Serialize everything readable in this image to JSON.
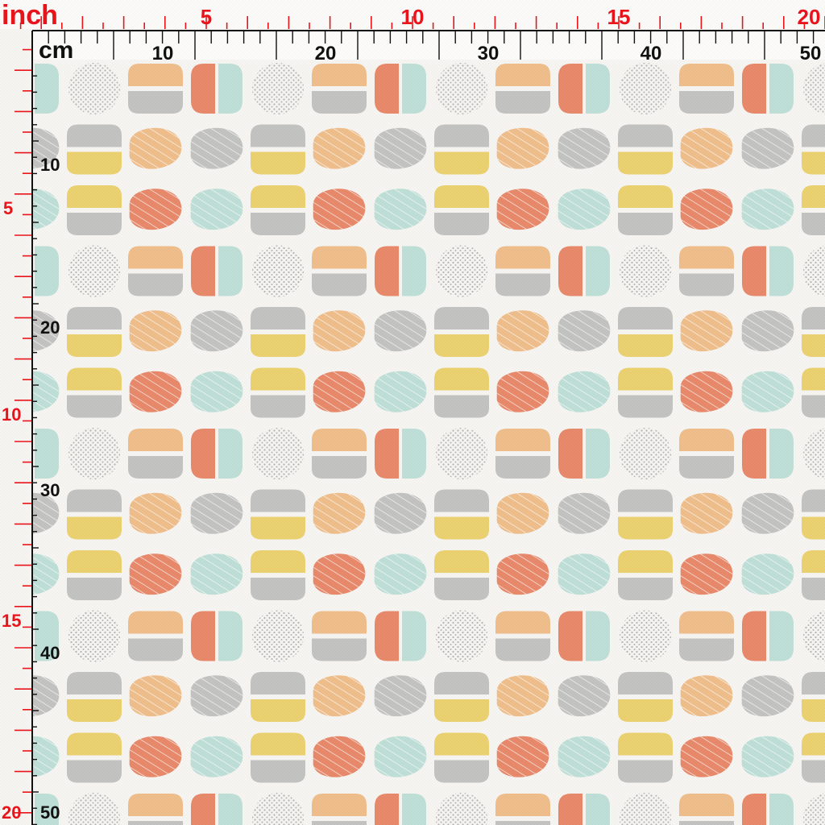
{
  "ruler": {
    "inch_unit": "inch",
    "cm_unit": "cm",
    "inch_top_labels": [
      "5",
      "10",
      "15",
      "20"
    ],
    "cm_top_labels": [
      "10",
      "20",
      "30",
      "40",
      "50"
    ],
    "inch_left_labels": [
      "5",
      "10",
      "15",
      "20"
    ],
    "cm_left_labels": [
      "10",
      "20",
      "30",
      "40",
      "50"
    ],
    "inch_color": "#e8141c",
    "cm_color": "#111111"
  },
  "fabric": {
    "background": "#f7f6f3",
    "colors": {
      "peach": "#f0bf8c",
      "coral": "#e98a6c",
      "mint": "#bfe0d8",
      "grey": "#c4c4c2",
      "yellow": "#ecd270",
      "speckle": "#b8b8b6"
    },
    "motif_order": [
      "speckle",
      "peach-grey",
      "coral-mint",
      "grey-yellow",
      "peach-lines",
      "grey-lines",
      "yellow-grey",
      "coral-lines",
      "mint-lines"
    ]
  }
}
